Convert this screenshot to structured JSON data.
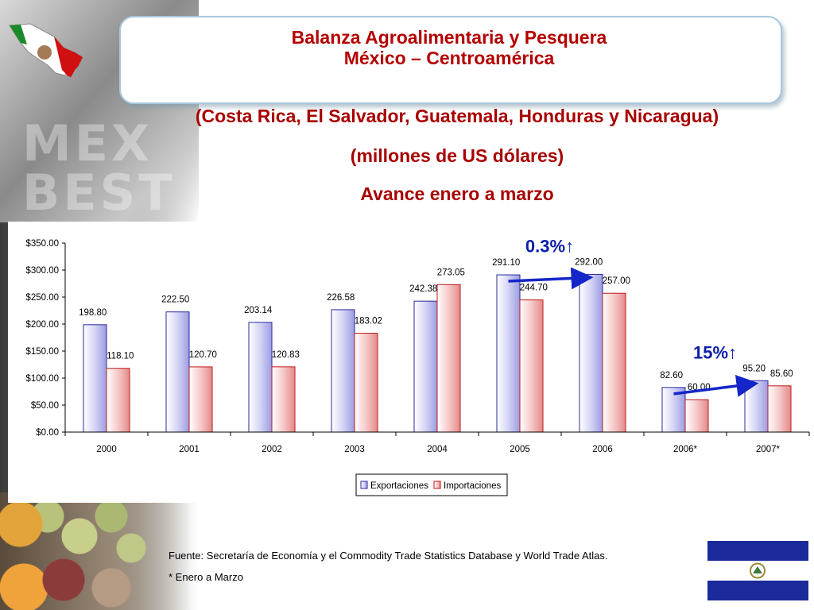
{
  "title": {
    "line1": "Balanza Agroalimentaria y Pesquera",
    "line2": "México – Centroamérica"
  },
  "subtitles": [
    "(Costa Rica, El Salvador, Guatemala, Honduras y Nicaragua)",
    "(millones de US dólares)",
    "Avance enero a marzo"
  ],
  "watermark": [
    "MEX",
    "BEST"
  ],
  "source_note": "Fuente: Secretaría de Economía y el Commodity Trade Statistics Database y World Trade Atlas.",
  "footnote": "* Enero a Marzo",
  "colors": {
    "title_red": "#b40000",
    "export_fill": "#c9c9f0",
    "import_fill": "#f4c2c2",
    "arrow_blue": "#1426c8",
    "annotation_blue": "#0a1ea8"
  },
  "chart_data": {
    "type": "bar",
    "categories": [
      "2000",
      "2001",
      "2002",
      "2003",
      "2004",
      "2005",
      "2006",
      "2006*",
      "2007*"
    ],
    "series": [
      {
        "name": "Exportaciones",
        "values": [
          198.8,
          222.5,
          203.14,
          226.58,
          242.38,
          291.1,
          292.0,
          82.6,
          95.2
        ],
        "labels": [
          "198.80",
          "222.50",
          "203.14",
          "226.58",
          "242.38",
          "291.10",
          "292.00",
          "82.60",
          "95.20"
        ]
      },
      {
        "name": "Importaciones",
        "values": [
          118.1,
          120.7,
          120.83,
          183.02,
          273.05,
          244.7,
          257.0,
          60.0,
          85.6
        ],
        "labels": [
          "118.10",
          "120.70",
          "120.83",
          "183.02",
          "273.05",
          "244.70",
          "257.00",
          "60.00",
          "85.60"
        ]
      }
    ],
    "ylim": [
      0,
      350
    ],
    "yticks": [
      "$0.00",
      "$50.00",
      "$100.00",
      "$150.00",
      "$200.00",
      "$250.00",
      "$300.00",
      "$350.00"
    ],
    "legend": "bottom-center",
    "annotations": [
      {
        "text": "0.3%↑",
        "from_category": "2005",
        "to_category": "2006"
      },
      {
        "text": "15%↑",
        "from_category": "2006*",
        "to_category": "2007*"
      }
    ]
  }
}
